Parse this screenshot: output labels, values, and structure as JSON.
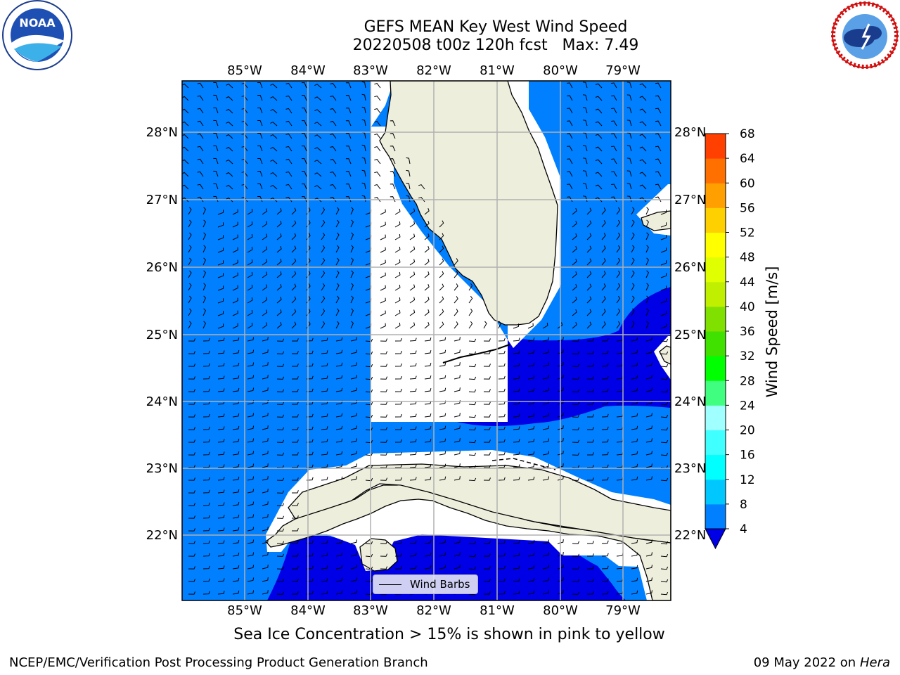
{
  "title": {
    "line1": "GEFS MEAN Key West Wind Speed",
    "line2": "20220508 t00z 120h fcst   Max: 7.49"
  },
  "map": {
    "lon_labels": [
      "85°W",
      "84°W",
      "83°W",
      "82°W",
      "81°W",
      "80°W",
      "79°W"
    ],
    "lat_labels": [
      "28°N",
      "27°N",
      "26°N",
      "25°N",
      "24°N",
      "23°N",
      "22°N"
    ],
    "legend_label": "Wind Barbs",
    "colors": {
      "ocean_4_8": "#0080ff",
      "ocean_0_4": "#0000e6",
      "land": "#eeeedd",
      "grid": "#b0b0b0"
    }
  },
  "colorbar": {
    "label": "Wind Speed [m/s]",
    "ticks": [
      "4",
      "8",
      "12",
      "16",
      "20",
      "24",
      "28",
      "32",
      "36",
      "40",
      "44",
      "48",
      "52",
      "56",
      "60",
      "64",
      "68"
    ],
    "colors": [
      "#0080ff",
      "#00c8ff",
      "#00ffff",
      "#40ffff",
      "#a0ffff",
      "#40ff80",
      "#00ff00",
      "#40e000",
      "#80e000",
      "#c0f000",
      "#e0ff00",
      "#ffff00",
      "#ffd000",
      "#ffa000",
      "#ff7000",
      "#ff4000",
      "#ff0000"
    ],
    "extend_color": "#0000e6"
  },
  "caption": "Sea Ice Concentration > 15% is shown in pink to yellow",
  "footer": {
    "left": "NCEP/EMC/Verification Post Processing Product Generation Branch",
    "date": "09 May 2022 on",
    "machine": "Hera"
  },
  "logos": {
    "noaa_text": "NOAA",
    "nws_text": "NATIONAL WEATHER SERVICE"
  }
}
